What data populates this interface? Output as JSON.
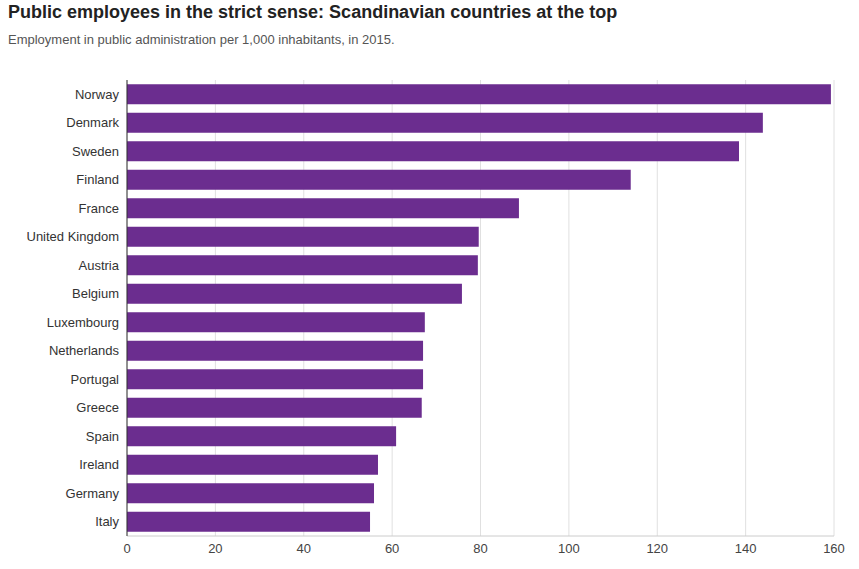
{
  "chart_data": {
    "type": "bar",
    "title": "Public employees in the strict sense: Scandinavian countries at the top",
    "subtitle": "Employment in public administration per 1,000 inhabitants, in 2015.",
    "categories": [
      "Norway",
      "Denmark",
      "Sweden",
      "Finland",
      "France",
      "United Kingdom",
      "Austria",
      "Belgium",
      "Luxembourg",
      "Netherlands",
      "Portugal",
      "Greece",
      "Spain",
      "Ireland",
      "Germany",
      "Italy"
    ],
    "values": [
      159.3,
      143.9,
      138.5,
      114,
      88.7,
      79.6,
      79.4,
      75.8,
      67.4,
      67,
      67,
      66.7,
      60.9,
      56.8,
      55.9,
      55
    ],
    "color": "#6b2d8f",
    "orientation": "horizontal",
    "xlim": [
      0,
      160
    ],
    "xticks": [
      0,
      20,
      40,
      60,
      80,
      100,
      120,
      140,
      160
    ],
    "grid": true
  }
}
